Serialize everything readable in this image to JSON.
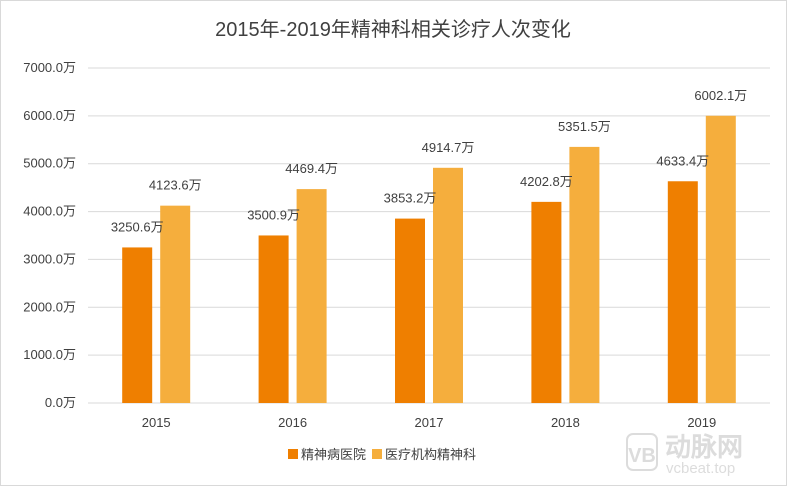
{
  "chart_data": {
    "type": "bar",
    "title": "2015年-2019年精神科相关诊疗人次变化",
    "categories": [
      "2015",
      "2016",
      "2017",
      "2018",
      "2019"
    ],
    "series": [
      {
        "name": "精神病医院",
        "values": [
          3250.6,
          3500.9,
          3853.2,
          4202.8,
          4633.4
        ],
        "labels": [
          "3250.6万",
          "3500.9万",
          "3853.2万",
          "4202.8万",
          "4633.4万"
        ],
        "color": "#ef7f00"
      },
      {
        "name": "医疗机构精神科",
        "values": [
          4123.6,
          4469.4,
          4914.7,
          5351.5,
          6002.1
        ],
        "labels": [
          "4123.6万",
          "4469.4万",
          "4914.7万",
          "5351.5万",
          "6002.1万"
        ],
        "color": "#f5ae3d"
      }
    ],
    "ylim": [
      0,
      7000
    ],
    "yticks": [
      0,
      1000,
      2000,
      3000,
      4000,
      5000,
      6000,
      7000
    ],
    "ytick_labels": [
      "0.0万",
      "1000.0万",
      "2000.0万",
      "3000.0万",
      "4000.0万",
      "5000.0万",
      "6000.0万",
      "7000.0万"
    ],
    "grid": true,
    "legend_position": "bottom"
  },
  "watermark": {
    "logo": "VB",
    "brand": "动脉网",
    "site": "vcbeat.top"
  },
  "colors": {
    "grid": "#d9d9d9",
    "text": "#404040",
    "watermark": "#d9d9d9"
  }
}
